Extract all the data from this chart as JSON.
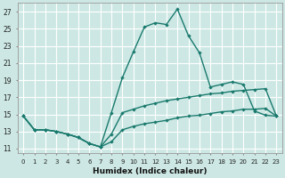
{
  "xlabel": "Humidex (Indice chaleur)",
  "ylabel": "",
  "background_color": "#cde8e4",
  "grid_color": "#ffffff",
  "line_color": "#1a7a6e",
  "xlim": [
    -0.5,
    23.5
  ],
  "ylim": [
    10.5,
    28.0
  ],
  "xticks": [
    0,
    1,
    2,
    3,
    4,
    5,
    6,
    7,
    8,
    9,
    10,
    11,
    12,
    13,
    14,
    15,
    16,
    17,
    18,
    19,
    20,
    21,
    22,
    23
  ],
  "yticks": [
    11,
    13,
    15,
    17,
    19,
    21,
    23,
    25,
    27
  ],
  "line1_x": [
    0,
    1,
    2,
    3,
    4,
    5,
    6,
    7,
    8,
    9,
    10,
    11,
    12,
    13,
    14,
    15,
    16,
    17,
    18,
    19,
    20,
    21,
    22,
    23
  ],
  "line1_y": [
    14.8,
    13.2,
    13.2,
    13.0,
    12.7,
    12.3,
    11.6,
    11.2,
    15.2,
    19.3,
    22.3,
    25.2,
    25.7,
    25.5,
    27.3,
    24.2,
    22.2,
    18.2,
    18.5,
    18.8,
    18.5,
    15.4,
    14.9,
    14.8
  ],
  "line2_x": [
    0,
    1,
    2,
    3,
    4,
    5,
    6,
    7,
    8,
    9,
    10,
    11,
    12,
    13,
    14,
    15,
    16,
    17,
    18,
    19,
    20,
    21,
    22,
    23
  ],
  "line2_y": [
    14.8,
    13.2,
    13.2,
    13.0,
    12.7,
    12.3,
    11.6,
    11.2,
    12.7,
    15.2,
    15.6,
    16.0,
    16.3,
    16.6,
    16.8,
    17.0,
    17.2,
    17.4,
    17.5,
    17.7,
    17.8,
    17.9,
    18.0,
    14.8
  ],
  "line3_x": [
    0,
    1,
    2,
    3,
    4,
    5,
    6,
    7,
    8,
    9,
    10,
    11,
    12,
    13,
    14,
    15,
    16,
    17,
    18,
    19,
    20,
    21,
    22,
    23
  ],
  "line3_y": [
    14.8,
    13.2,
    13.2,
    13.0,
    12.7,
    12.3,
    11.6,
    11.2,
    11.8,
    13.2,
    13.6,
    13.9,
    14.1,
    14.3,
    14.6,
    14.8,
    14.9,
    15.1,
    15.3,
    15.4,
    15.6,
    15.6,
    15.7,
    14.8
  ]
}
